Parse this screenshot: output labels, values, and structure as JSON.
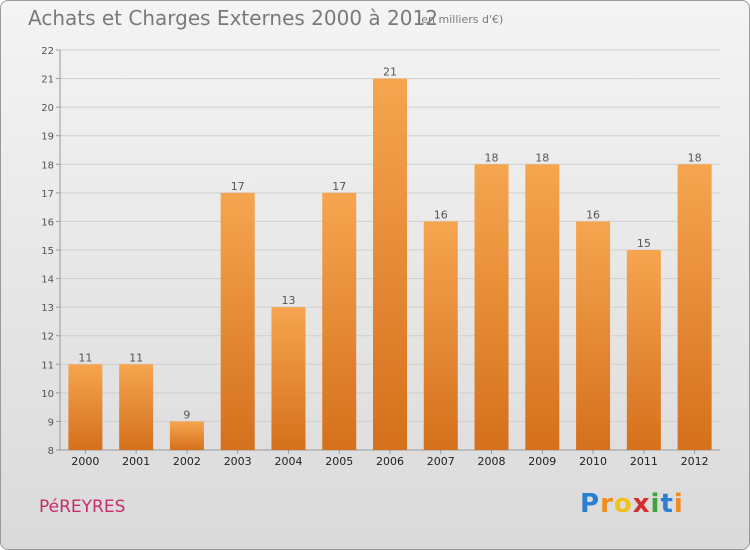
{
  "header": {
    "title": "Achats et Charges Externes 2000 à 2012",
    "unit": "(en milliers d'€)"
  },
  "footer": {
    "town": "PéREYRES",
    "logo_letters": [
      "P",
      "r",
      "o",
      "x",
      "i",
      "t",
      "i"
    ],
    "logo_colors": [
      "#2b7fd1",
      "#f08b1e",
      "#f2c21b",
      "#d42d2d",
      "#3aa63a",
      "#2b7fd1",
      "#f08b1e"
    ]
  },
  "colors": {
    "bar_top": "#f6a54f",
    "bar_bottom": "#d5701c",
    "grid": "#cfcfcf",
    "axis": "#999999"
  },
  "chart_data": {
    "type": "bar",
    "title": "Achats et Charges Externes 2000 à 2012",
    "subtitle": "(en milliers d'€)",
    "categories": [
      "2000",
      "2001",
      "2002",
      "2003",
      "2004",
      "2005",
      "2006",
      "2007",
      "2008",
      "2009",
      "2010",
      "2011",
      "2012"
    ],
    "values": [
      11,
      11,
      9,
      17,
      13,
      17,
      21,
      16,
      18,
      18,
      16,
      15,
      18
    ],
    "ylim": [
      8,
      22
    ],
    "yticks": [
      8,
      9,
      10,
      11,
      12,
      13,
      14,
      15,
      16,
      17,
      18,
      19,
      20,
      21,
      22
    ],
    "grid": true,
    "xlabel": "",
    "ylabel": ""
  }
}
